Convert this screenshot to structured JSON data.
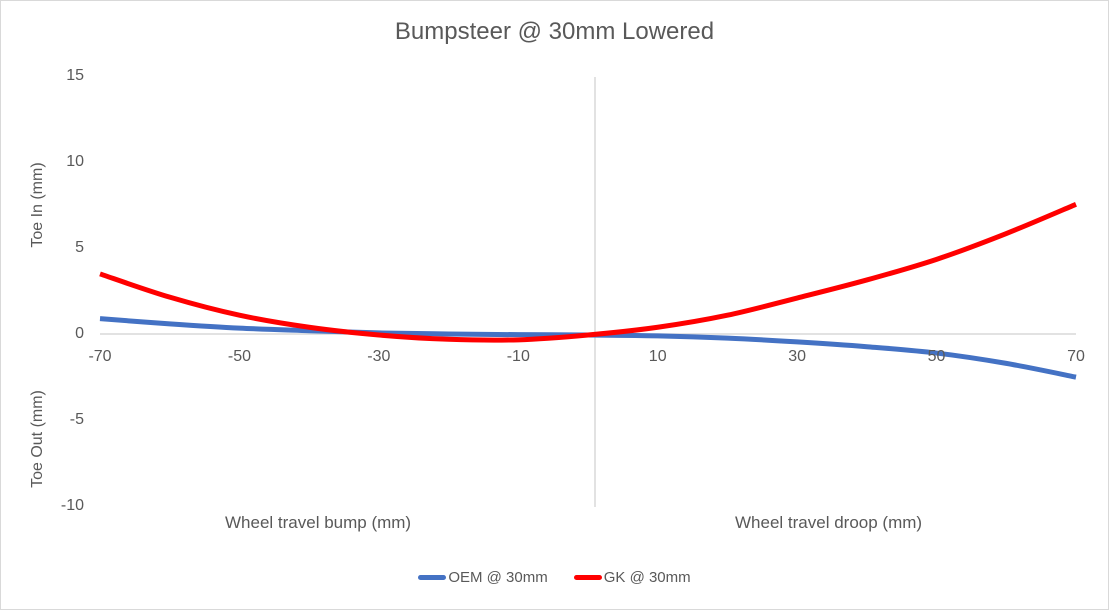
{
  "chart_data": {
    "type": "line",
    "title": "Bumpsteer @ 30mm Lowered",
    "xlabel_left": "Wheel travel bump (mm)",
    "xlabel_right": "Wheel travel droop (mm)",
    "ylabel_top": "Toe In (mm)",
    "ylabel_bottom": "Toe Out (mm)",
    "xlim": [
      -70,
      70
    ],
    "ylim": [
      -10,
      15
    ],
    "x_ticks": [
      -70,
      -50,
      -30,
      -10,
      10,
      30,
      50,
      70
    ],
    "y_ticks": [
      15,
      10,
      5,
      0,
      -5,
      -10
    ],
    "grid": false,
    "legend_position": "bottom",
    "x": [
      -70,
      -60,
      -50,
      -40,
      -30,
      -20,
      -10,
      0,
      10,
      20,
      30,
      40,
      50,
      60,
      70
    ],
    "series": [
      {
        "name": "OEM @ 30mm",
        "color": "#4472C4",
        "values": [
          0.95,
          0.65,
          0.4,
          0.25,
          0.12,
          0.06,
          0.02,
          0.0,
          -0.05,
          -0.18,
          -0.4,
          -0.68,
          -1.05,
          -1.65,
          -2.45
        ]
      },
      {
        "name": "GK @ 30mm",
        "color": "#FF0000",
        "values": [
          3.55,
          2.2,
          1.15,
          0.45,
          0.0,
          -0.25,
          -0.28,
          0.0,
          0.45,
          1.15,
          2.15,
          3.2,
          4.4,
          5.9,
          7.6
        ]
      }
    ]
  }
}
